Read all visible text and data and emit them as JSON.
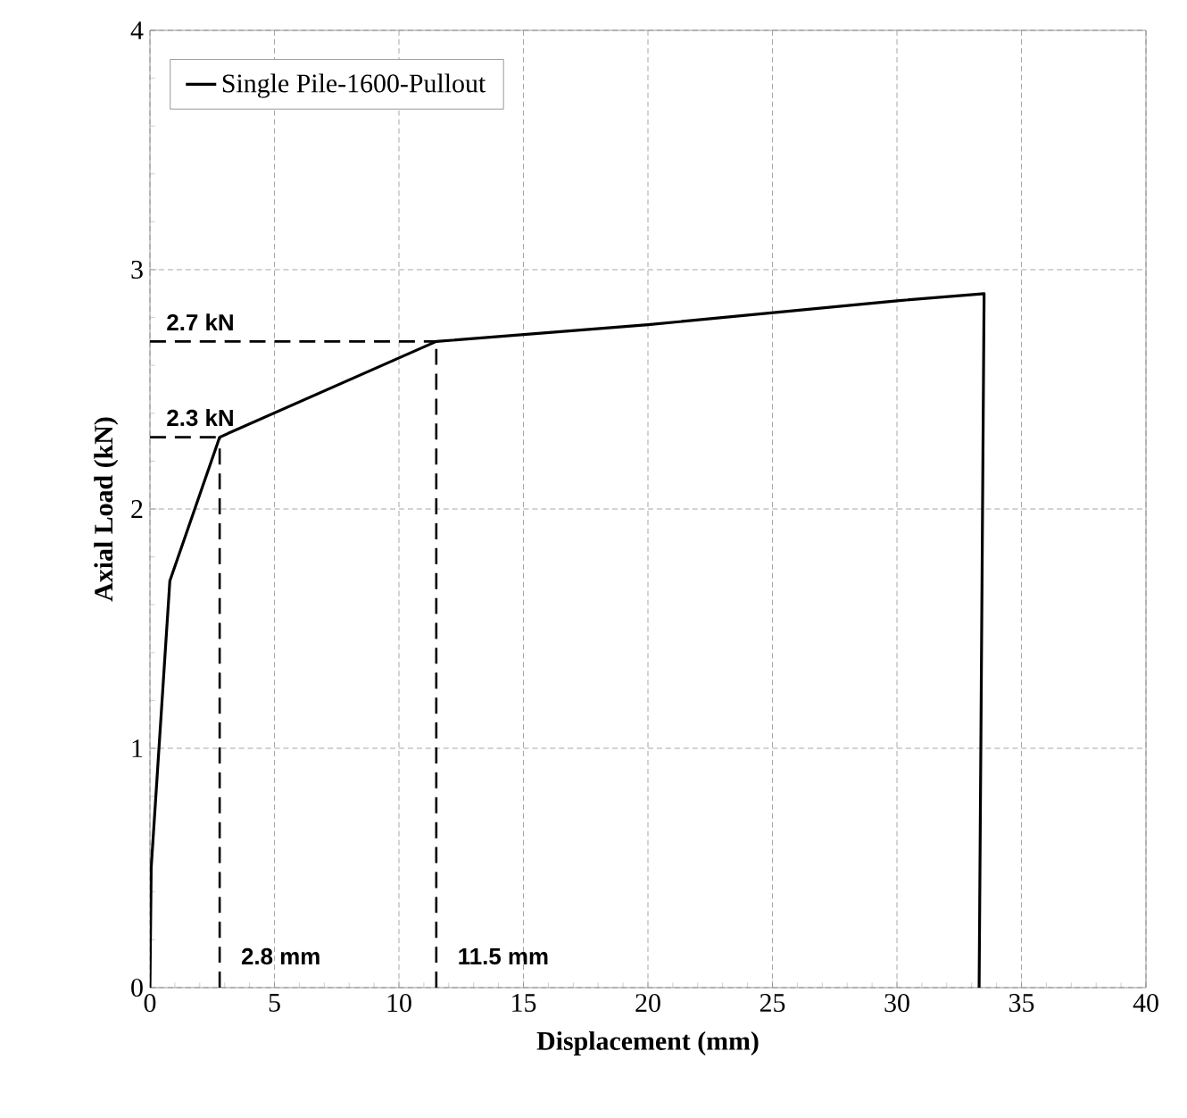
{
  "chart_data": {
    "type": "line",
    "xlabel": "Displacement (mm)",
    "ylabel": "Axial Load (kN)",
    "xlim": [
      0,
      40
    ],
    "ylim": [
      0,
      4
    ],
    "xticks": [
      0,
      5,
      10,
      15,
      20,
      25,
      30,
      35,
      40
    ],
    "yticks": [
      0,
      1,
      2,
      3,
      4
    ],
    "series": [
      {
        "name": "Single Pile-1600-Pullout",
        "color": "#000000",
        "x": [
          0,
          0.05,
          0.8,
          2.8,
          11.5,
          20,
          25,
          30,
          33.5,
          33.3
        ],
        "values": [
          0,
          0.5,
          1.7,
          2.3,
          2.7,
          2.77,
          2.82,
          2.87,
          2.9,
          0
        ]
      }
    ],
    "ref_lines": [
      {
        "axis": "y",
        "value": 2.7,
        "label": "2.7 kN",
        "color": "#000000",
        "line_style": "dashed"
      },
      {
        "axis": "y",
        "value": 2.3,
        "label": "2.3 kN",
        "color": "#000000",
        "line_style": "dashed"
      },
      {
        "axis": "x",
        "value": 2.8,
        "label": "2.8 mm",
        "color": "#000000",
        "line_style": "dashed"
      },
      {
        "axis": "x",
        "value": 11.5,
        "label": "11.5 mm",
        "color": "#000000",
        "line_style": "dashed"
      }
    ],
    "grid": true,
    "legend": "top left",
    "marker": "none",
    "line_style": "solid"
  }
}
